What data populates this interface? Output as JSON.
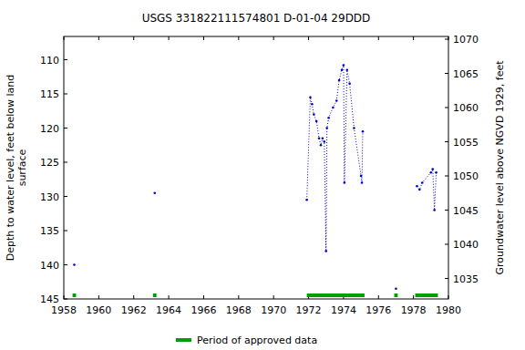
{
  "chart_data": {
    "type": "line",
    "title": "USGS 331822111574801 D-01-04 29DDD",
    "ylabel": "Depth to water level, feet below land\nsurface",
    "y2label": "Groundwater level above NGVD 1929, feet",
    "x": [
      1958.6,
      null,
      1963.2,
      null,
      1971.9,
      1972.1,
      1972.2,
      1972.3,
      1972.45,
      1972.6,
      1972.7,
      1972.8,
      1972.9,
      1973.0,
      1973.05,
      1973.15,
      1973.4,
      1973.6,
      1973.75,
      1973.9,
      1974.0,
      1974.05,
      1974.2,
      1974.35,
      1974.6,
      1975.0,
      1975.05,
      1975.1,
      null,
      1977.0,
      null,
      1978.2,
      1978.35,
      1978.5,
      1979.0,
      1979.1,
      1979.2,
      1979.3
    ],
    "series": [
      {
        "name": "Depth to water level",
        "color": "#0000cc",
        "marker": "dot",
        "line_style": "dotted",
        "values": [
          140,
          null,
          129.5,
          null,
          130.5,
          115.5,
          116.5,
          118,
          119,
          121.5,
          122.5,
          121.5,
          122,
          138,
          120,
          118.5,
          117,
          116,
          113,
          111.5,
          110.8,
          128,
          111.5,
          113.5,
          120,
          127,
          128,
          120.5,
          null,
          143.5,
          null,
          128.5,
          129,
          128,
          126.5,
          126,
          132,
          126.5
        ]
      }
    ],
    "xlim": [
      1958,
      1980
    ],
    "xticks": [
      1958,
      1960,
      1962,
      1964,
      1966,
      1968,
      1970,
      1972,
      1974,
      1976,
      1978,
      1980
    ],
    "ylim": [
      106.6,
      145
    ],
    "yticks": [
      110,
      115,
      120,
      125,
      130,
      135,
      140,
      145
    ],
    "y2lim": [
      1070.4,
      1032
    ],
    "y2ticks": [
      1035,
      1040,
      1045,
      1050,
      1055,
      1060,
      1065,
      1070
    ],
    "approved_periods": {
      "name": "Period of approved data",
      "color": "#00a000",
      "ranges": [
        [
          1958.5,
          1958.7
        ],
        [
          1963.1,
          1963.3
        ],
        [
          1971.9,
          1975.2
        ],
        [
          1976.9,
          1977.1
        ],
        [
          1978.1,
          1979.4
        ]
      ]
    },
    "grid": false
  }
}
